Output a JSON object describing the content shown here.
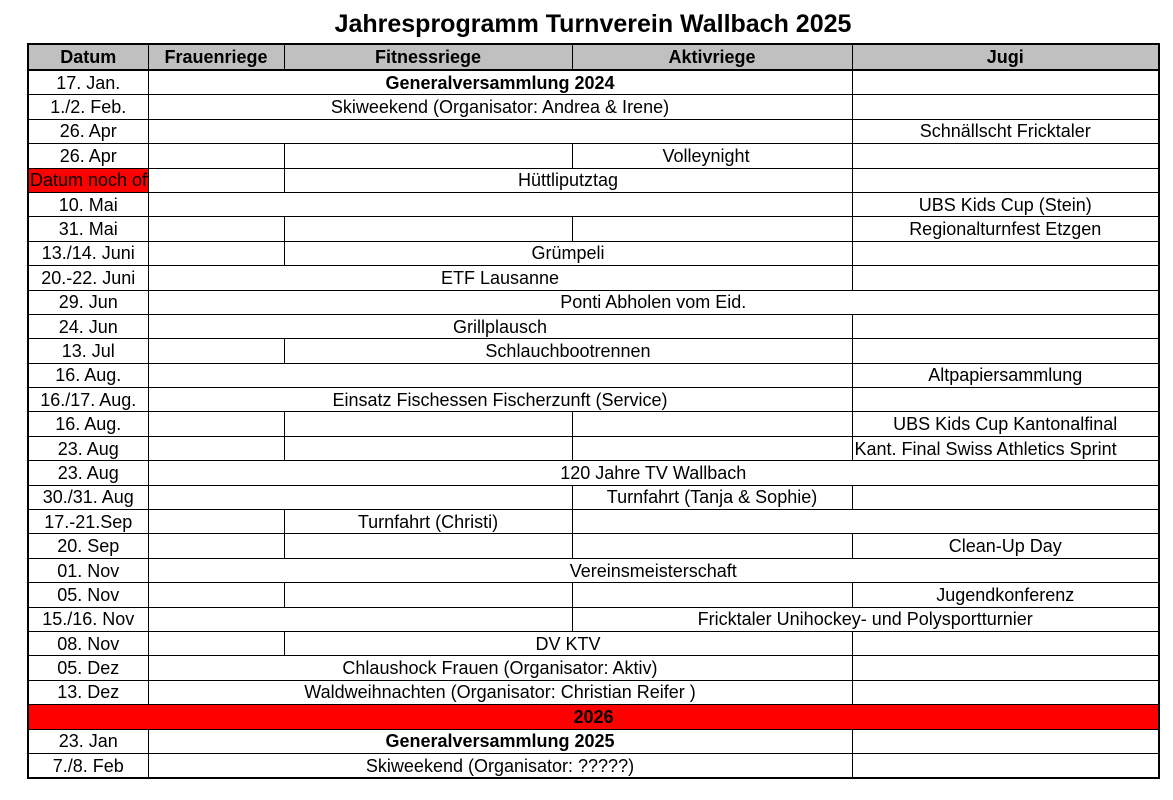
{
  "title": "Jahresprogramm Turnverein Wallbach 2025",
  "headers": {
    "datum": "Datum",
    "frauenriege": "Frauenriege",
    "fitnessriege": "Fitnessriege",
    "aktivriege": "Aktivriege",
    "jugi": "Jugi"
  },
  "rows": [
    {
      "date": "17. Jan.",
      "event": "Generalversammlung 2024"
    },
    {
      "date": "1./2. Feb.",
      "event": "Skiweekend (Organisator: Andrea & Irene)"
    },
    {
      "date": "26. Apr",
      "event": "Schnällscht Fricktaler"
    },
    {
      "date": "26. Apr",
      "event": "Volleynight"
    },
    {
      "date": "Datum noch offen",
      "event": "Hüttliputztag"
    },
    {
      "date": "10. Mai",
      "event": "UBS Kids Cup (Stein)"
    },
    {
      "date": "31. Mai",
      "event": "Regionalturnfest Etzgen"
    },
    {
      "date": "13./14. Juni",
      "event": "Grümpeli"
    },
    {
      "date": "20.-22. Juni",
      "event": "ETF Lausanne"
    },
    {
      "date": "29. Jun",
      "event": "Ponti Abholen vom Eid."
    },
    {
      "date": "24. Jun",
      "event": "Grillplausch"
    },
    {
      "date": "13. Jul",
      "event": "Schlauchbootrennen"
    },
    {
      "date": "16. Aug.",
      "event": "Altpapiersammlung"
    },
    {
      "date": "16./17. Aug.",
      "event": "Einsatz Fischessen Fischerzunft (Service)"
    },
    {
      "date": "16. Aug.",
      "event": "UBS Kids Cup Kantonalfinal"
    },
    {
      "date": "23. Aug",
      "event": "Kant. Final Swiss Athletics Sprint"
    },
    {
      "date": "23. Aug",
      "event": "120 Jahre TV Wallbach"
    },
    {
      "date": "30./31. Aug",
      "event": "Turnfahrt (Tanja & Sophie)"
    },
    {
      "date": "17.-21.Sep",
      "event": "Turnfahrt (Christi)"
    },
    {
      "date": "20. Sep",
      "event": "Clean-Up Day"
    },
    {
      "date": "01. Nov",
      "event": "Vereinsmeisterschaft"
    },
    {
      "date": "05. Nov",
      "event": "Jugendkonferenz"
    },
    {
      "date": "15./16. Nov",
      "event": "Fricktaler Unihockey- und Polysportturnier"
    },
    {
      "date": "08. Nov",
      "event": "DV KTV"
    },
    {
      "date": "05. Dez",
      "event": "Chlaushock Frauen (Organisator: Aktiv)"
    },
    {
      "date": "13. Dez",
      "event": "Waldweihnachten (Organisator:  Christian Reifer )"
    }
  ],
  "year_divider": "2026",
  "rows_next": [
    {
      "date": "23. Jan",
      "event": "Generalversammlung 2025"
    },
    {
      "date": "7./8. Feb",
      "event": "Skiweekend (Organisator: ?????)"
    }
  ],
  "colors": {
    "header_bg": "#c0c0c0",
    "highlight_red": "#ff0000"
  }
}
